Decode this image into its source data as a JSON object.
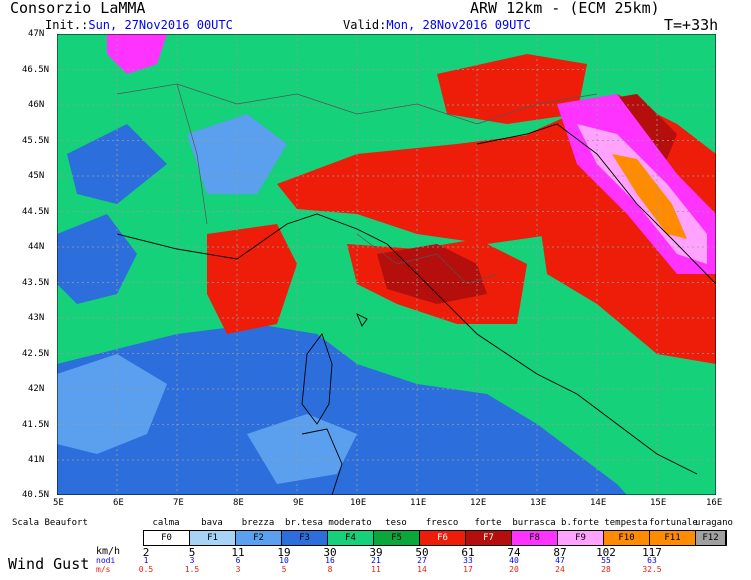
{
  "header": {
    "org": "Consorzio LaMMA",
    "model": "ARW 12km - (ECM 25km)",
    "init_label": "Init.:",
    "init_value": "Sun, 27Nov2016 00UTC",
    "valid_label": "Valid:",
    "valid_value": "Mon, 28Nov2016 09UTC",
    "step": "T=+33h"
  },
  "axes": {
    "lat": [
      "47N",
      "46.5N",
      "46N",
      "45.5N",
      "45N",
      "44.5N",
      "44N",
      "43.5N",
      "43N",
      "42.5N",
      "42N",
      "41.5N",
      "41N",
      "40.5N"
    ],
    "lon": [
      "5E",
      "6E",
      "7E",
      "8E",
      "9E",
      "10E",
      "11E",
      "12E",
      "13E",
      "14E",
      "15E",
      "16E"
    ]
  },
  "legend": {
    "scale_title": "Scala Beaufort",
    "descriptions": [
      "calma",
      "bava",
      "brezza",
      "br.tesa",
      "moderato",
      "teso",
      "fresco",
      "forte",
      "burrasca",
      "b.forte",
      "tempesta",
      "fortunale",
      "uragano"
    ],
    "classes": [
      "F0",
      "F1",
      "F2",
      "F3",
      "F4",
      "F5",
      "F6",
      "F7",
      "F8",
      "F9",
      "F10",
      "F11",
      "F12"
    ],
    "colors": [
      "#ffffff",
      "#a7d3f5",
      "#5aa0ee",
      "#2c6fdc",
      "#14d17a",
      "#0aa83a",
      "#ee1d0a",
      "#b40f0c",
      "#ff33ff",
      "#ffa3ff",
      "#ff8c00",
      "#ff8c00",
      "#a0a0a0"
    ],
    "field_title": "Wind Gust",
    "kmh_label": "km/h",
    "kmh_values": [
      "2",
      "5",
      "11",
      "19",
      "30",
      "39",
      "50",
      "61",
      "74",
      "87",
      "102",
      "117"
    ],
    "knots_label": "nodi",
    "knots_values": [
      "1",
      "3",
      "6",
      "10",
      "16",
      "21",
      "27",
      "33",
      "40",
      "47",
      "55",
      "63"
    ],
    "ms_label": "m/s",
    "ms_values": [
      "0.5",
      "1.5",
      "3",
      "5",
      "8",
      "11",
      "14",
      "17",
      "20",
      "24",
      "28",
      "32.5"
    ]
  }
}
